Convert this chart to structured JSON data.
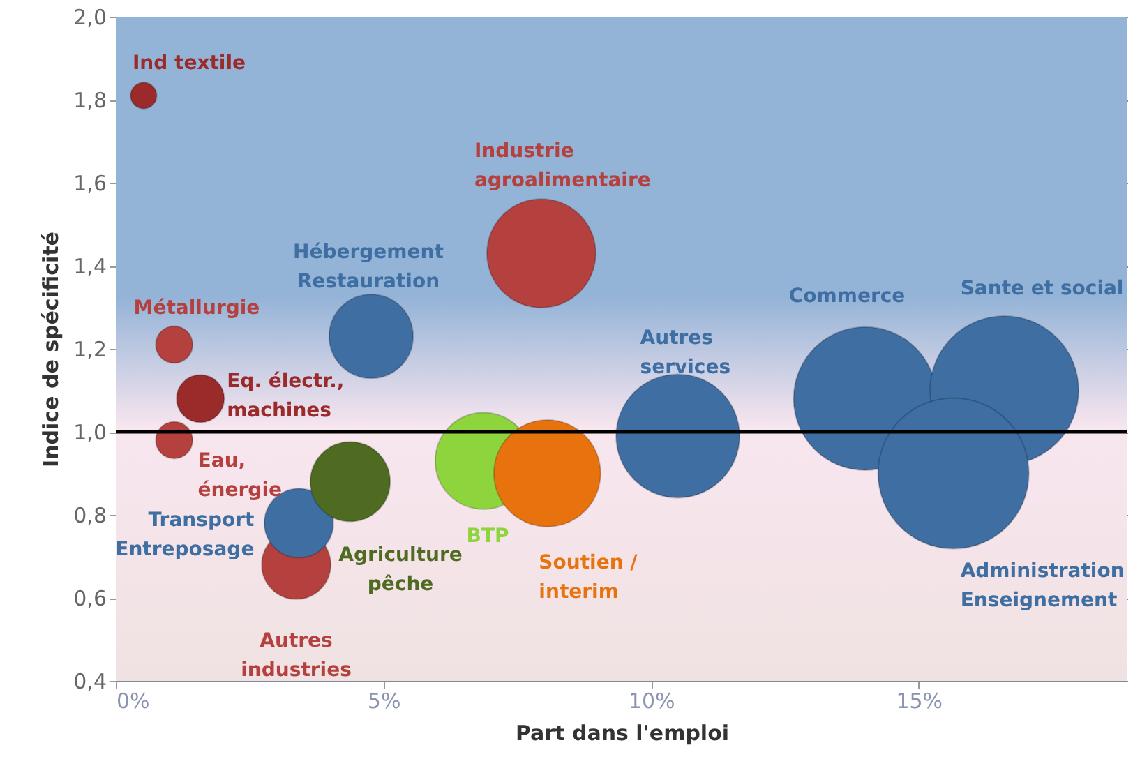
{
  "chart_data": {
    "type": "bubble",
    "xlabel": "Part dans l'emploi",
    "ylabel": "Indice de spécificité",
    "xlim": [
      0,
      18.9
    ],
    "ylim": [
      0.4,
      2.0
    ],
    "xticks": [
      {
        "value": 0,
        "label": "0%"
      },
      {
        "value": 5,
        "label": "5%"
      },
      {
        "value": 10,
        "label": "10%"
      },
      {
        "value": 15,
        "label": "15%"
      }
    ],
    "yticks": [
      {
        "value": 0.4,
        "label": "0,4"
      },
      {
        "value": 0.6,
        "label": "0,6"
      },
      {
        "value": 0.8,
        "label": "0,8"
      },
      {
        "value": 1.0,
        "label": "1,0"
      },
      {
        "value": 1.2,
        "label": "1,2"
      },
      {
        "value": 1.4,
        "label": "1,4"
      },
      {
        "value": 1.6,
        "label": "1,6"
      },
      {
        "value": 1.8,
        "label": "1,8"
      },
      {
        "value": 2.0,
        "label": "2,0"
      }
    ],
    "grid": "y",
    "ref_lines": [
      {
        "axis": "y",
        "value": 1.0,
        "color": "#000000"
      }
    ],
    "series": [
      {
        "name": "Ind textile",
        "color": "#9b2a2a",
        "x": [
          0.52
        ],
        "values": [
          1.81
        ],
        "sizes": [
          0.03
        ]
      },
      {
        "name": "Métallurgie",
        "color": "#b5413f",
        "x": [
          1.09
        ],
        "values": [
          1.21
        ],
        "sizes": [
          0.06
        ]
      },
      {
        "name": "Eq. électr.,\nmachines",
        "color": "#9b2a2a",
        "x": [
          1.58
        ],
        "values": [
          1.08
        ],
        "sizes": [
          0.1
        ]
      },
      {
        "name": "Eau,\nénergie",
        "color": "#b5413f",
        "x": [
          1.09
        ],
        "values": [
          0.98
        ],
        "sizes": [
          0.06
        ]
      },
      {
        "name": "Autres\nindustries",
        "color": "#b5413f",
        "x": [
          3.37
        ],
        "values": [
          0.68
        ],
        "sizes": [
          0.21
        ]
      },
      {
        "name": "Transport\nEntreposage",
        "color": "#3f6ea3",
        "x": [
          3.42
        ],
        "values": [
          0.78
        ],
        "sizes": [
          0.21
        ]
      },
      {
        "name": "Agriculture\npêche",
        "color": "#4f6b22",
        "x": [
          4.38
        ],
        "values": [
          0.88
        ],
        "sizes": [
          0.28
        ]
      },
      {
        "name": "Hébergement\nRestauration",
        "color": "#3f6ea3",
        "x": [
          4.77
        ],
        "values": [
          1.23
        ],
        "sizes": [
          0.31
        ]
      },
      {
        "name": "BTP",
        "color": "#8ed43c",
        "x": [
          6.87
        ],
        "values": [
          0.93
        ],
        "sizes": [
          0.41
        ]
      },
      {
        "name": "Industrie\nagroalimentaire",
        "color": "#b5413f",
        "x": [
          7.95
        ],
        "values": [
          1.43
        ],
        "sizes": [
          0.52
        ]
      },
      {
        "name": "Soutien /\ninterim",
        "color": "#e8720e",
        "x": [
          8.06
        ],
        "values": [
          0.9
        ],
        "sizes": [
          0.5
        ]
      },
      {
        "name": "Autres\nservices",
        "color": "#3f6ea3",
        "x": [
          10.5
        ],
        "values": [
          0.99
        ],
        "sizes": [
          0.67
        ]
      },
      {
        "name": "Commerce",
        "color": "#3f6ea3",
        "x": [
          14.0
        ],
        "values": [
          1.08
        ],
        "sizes": [
          0.9
        ]
      },
      {
        "name": "Sante et social",
        "color": "#3f6ea3",
        "x": [
          16.6
        ],
        "values": [
          1.1
        ],
        "sizes": [
          0.97
        ]
      },
      {
        "name": "Administration\nEnseignement",
        "color": "#3f6ea3",
        "x": [
          15.65
        ],
        "values": [
          0.9
        ],
        "sizes": [
          1.0
        ]
      }
    ]
  }
}
